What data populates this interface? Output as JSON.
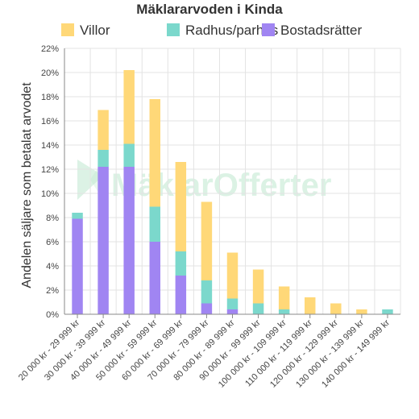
{
  "chart_data": {
    "type": "bar",
    "stacked": true,
    "title": "Mäklararvoden i Kinda",
    "ylabel": "Andelen säljare som betalat arvodet",
    "xlabel": "",
    "ylim": [
      0,
      22
    ],
    "y_ticks": [
      "0%",
      "2%",
      "4%",
      "6%",
      "8%",
      "10%",
      "12%",
      "14%",
      "16%",
      "18%",
      "20%",
      "22%"
    ],
    "grid": true,
    "legend_position": "top",
    "categories": [
      "20 000 kr - 29 999 kr",
      "30 000 kr - 39 999 kr",
      "40 000 kr - 49 999 kr",
      "50 000 kr - 59 999 kr",
      "60 000 kr - 69 999 kr",
      "70 000 kr - 79 999 kr",
      "80 000 kr - 89 999 kr",
      "90 000 kr - 99 999 kr",
      "100 000 kr - 109 999 kr",
      "110 000 kr - 119 999 kr",
      "120 000 kr - 129 999 kr",
      "130 000 kr - 139 999 kr",
      "140 000 kr - 149 999 kr"
    ],
    "series": [
      {
        "name": "Bostadsrätter",
        "color": "#a085f2",
        "values": [
          7.9,
          12.2,
          12.2,
          6.0,
          3.2,
          0.9,
          0.4,
          0,
          0,
          0,
          0,
          0,
          0
        ]
      },
      {
        "name": "Radhus/parhus",
        "color": "#7bd8cc",
        "values": [
          0.5,
          1.4,
          1.9,
          2.9,
          2.0,
          1.9,
          0.9,
          0.9,
          0.4,
          0,
          0,
          0,
          0.4
        ]
      },
      {
        "name": "Villor",
        "color": "#ffd878",
        "values": [
          0,
          3.3,
          6.1,
          8.9,
          7.4,
          6.5,
          3.8,
          2.8,
          1.9,
          1.4,
          0.9,
          0.4,
          0
        ]
      }
    ],
    "legend_order": [
      "Villor",
      "Radhus/parhus",
      "Bostadsrätter"
    ]
  },
  "watermark": {
    "text_part1": "Mäklar",
    "text_part2": "Offerter"
  },
  "colors": {
    "grid": "#e3e3e3",
    "axis": "#888888",
    "watermark": "#bfe8cf"
  }
}
